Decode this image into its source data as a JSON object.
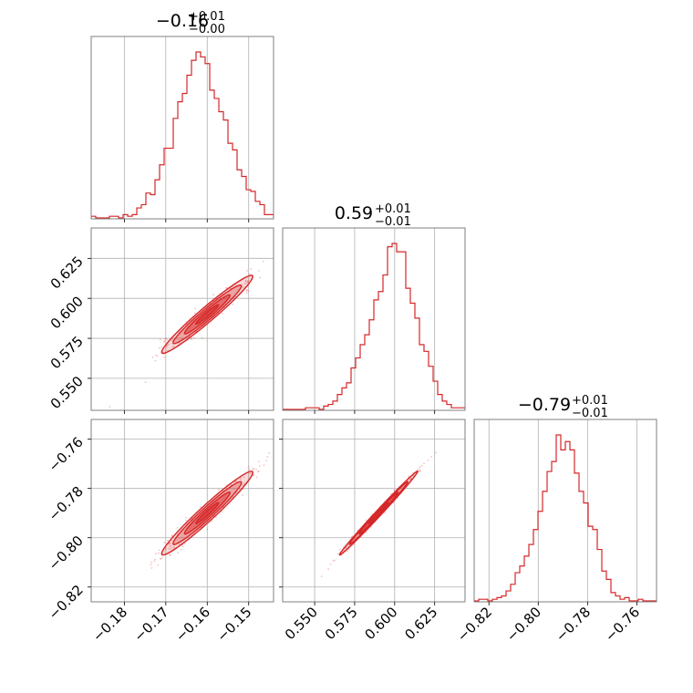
{
  "colors": {
    "accent": "#d62728",
    "frame": "#7f7f7f",
    "grid": "#b0b0b0",
    "background": "#ffffff"
  },
  "titles": {
    "p0": {
      "value": "−0.16",
      "plus": "+0.01",
      "minus": "−0.00"
    },
    "p1": {
      "value": "0.59",
      "plus": "+0.01",
      "minus": "−0.01"
    },
    "p2": {
      "value": "−0.79",
      "plus": "+0.01",
      "minus": "−0.01"
    }
  },
  "chart_data": {
    "type": "corner",
    "grid": true,
    "parameters": [
      {
        "median": -0.16,
        "err_plus": 0.01,
        "err_minus": 0.0,
        "range": [
          -0.188,
          -0.144
        ],
        "ticks": [
          -0.18,
          -0.17,
          -0.16,
          -0.15
        ],
        "tick_labels": [
          "−0.18",
          "−0.17",
          "−0.16",
          "−0.15"
        ]
      },
      {
        "median": 0.59,
        "err_plus": 0.01,
        "err_minus": 0.01,
        "range": [
          0.53,
          0.644
        ],
        "ticks": [
          0.55,
          0.575,
          0.6,
          0.625
        ],
        "tick_labels": [
          "0.550",
          "0.575",
          "0.600",
          "0.625"
        ]
      },
      {
        "median": -0.79,
        "err_plus": 0.01,
        "err_minus": 0.01,
        "range": [
          -0.826,
          -0.752
        ],
        "ticks": [
          -0.82,
          -0.8,
          -0.78,
          -0.76
        ],
        "tick_labels": [
          "−0.82",
          "−0.80",
          "−0.78",
          "−0.76"
        ]
      }
    ],
    "histograms": [
      {
        "param": 0,
        "bins": [
          -0.188,
          -0.144
        ],
        "counts": [
          0.01,
          0,
          0,
          0,
          0.01,
          0.01,
          0,
          0.02,
          0.01,
          0.02,
          0.06,
          0.08,
          0.15,
          0.14,
          0.23,
          0.32,
          0.42,
          0.42,
          0.6,
          0.7,
          0.75,
          0.86,
          0.95,
          1.0,
          0.97,
          0.93,
          0.77,
          0.72,
          0.64,
          0.59,
          0.45,
          0.41,
          0.29,
          0.25,
          0.17,
          0.16,
          0.1,
          0.08,
          0.02,
          0.02
        ]
      },
      {
        "param": 1,
        "bins": [
          0.53,
          0.644
        ],
        "counts": [
          0,
          0,
          0,
          0,
          0,
          0.01,
          0.01,
          0.01,
          0,
          0.02,
          0.03,
          0.05,
          0.09,
          0.13,
          0.16,
          0.25,
          0.31,
          0.39,
          0.45,
          0.54,
          0.66,
          0.71,
          0.81,
          0.98,
          1.0,
          0.95,
          0.95,
          0.73,
          0.64,
          0.55,
          0.39,
          0.35,
          0.26,
          0.17,
          0.09,
          0.05,
          0.03,
          0.01,
          0.01,
          0.01
        ]
      },
      {
        "param": 2,
        "bins": [
          -0.826,
          -0.752
        ],
        "counts": [
          0,
          0.01,
          0.01,
          0,
          0.01,
          0.02,
          0.03,
          0.06,
          0.1,
          0.17,
          0.21,
          0.27,
          0.34,
          0.43,
          0.54,
          0.66,
          0.78,
          0.84,
          1.0,
          0.91,
          0.96,
          0.91,
          0.77,
          0.66,
          0.59,
          0.45,
          0.43,
          0.31,
          0.18,
          0.13,
          0.05,
          0.03,
          0.01,
          0.02,
          0,
          0,
          0.01,
          0,
          0,
          0
        ]
      }
    ],
    "scatter_pairs": [
      {
        "x_param": 0,
        "y_param": 1,
        "center": [
          -0.16,
          0.59
        ],
        "sx": 0.0055,
        "sy": 0.0122,
        "rho": 0.97
      },
      {
        "x_param": 0,
        "y_param": 2,
        "center": [
          -0.16,
          -0.79
        ],
        "sx": 0.0055,
        "sy": 0.0085,
        "rho": 0.97
      },
      {
        "x_param": 1,
        "y_param": 2,
        "center": [
          0.59,
          -0.79
        ],
        "sx": 0.0122,
        "sy": 0.0085,
        "rho": 0.995
      }
    ],
    "contour_levels_sigma": [
      0.5,
      1.0,
      1.5,
      2.0
    ]
  }
}
